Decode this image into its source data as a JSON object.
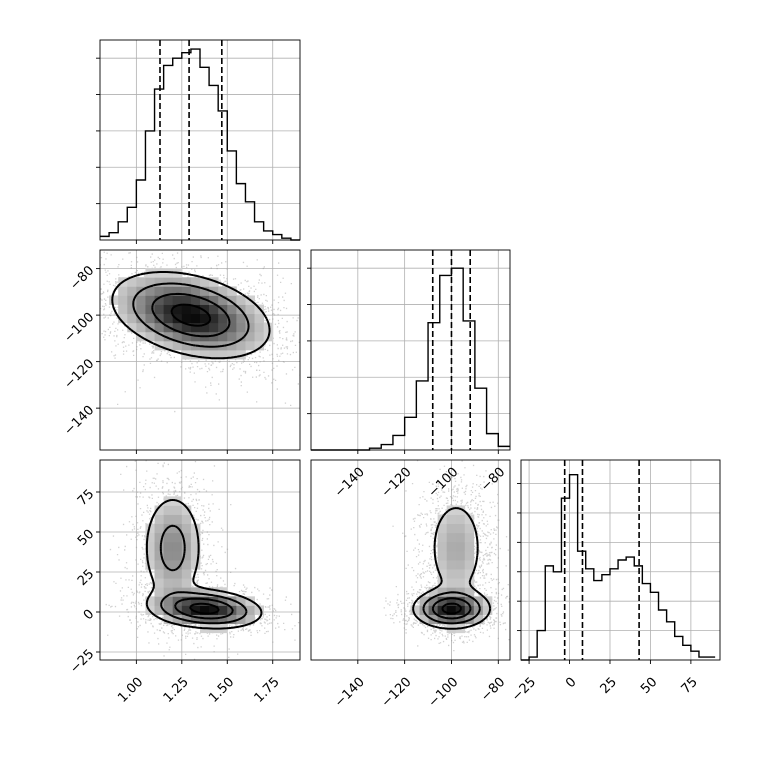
{
  "chart_data": [
    {
      "type": "histogram",
      "panel": "param-0-marginal",
      "bin_edges": [
        0.8,
        0.85,
        0.9,
        0.95,
        1.0,
        1.05,
        1.1,
        1.15,
        1.2,
        1.25,
        1.3,
        1.35,
        1.4,
        1.45,
        1.5,
        1.55,
        1.6,
        1.65,
        1.7,
        1.75,
        1.8,
        1.85,
        1.9
      ],
      "counts": [
        2,
        4,
        10,
        18,
        33,
        60,
        83,
        96,
        100,
        103,
        105,
        95,
        85,
        71,
        49,
        31,
        21,
        10,
        5,
        3,
        1,
        0
      ],
      "quantiles": [
        1.13,
        1.29,
        1.47
      ],
      "xlim": [
        0.8,
        1.9
      ],
      "ylim": [
        0,
        110
      ],
      "x_ticks": [
        1.0,
        1.25,
        1.5,
        1.75
      ]
    },
    {
      "type": "histogram",
      "panel": "param-1-marginal",
      "bin_edges": [
        -160,
        -155,
        -150,
        -145,
        -140,
        -135,
        -130,
        -125,
        -120,
        -115,
        -110,
        -105,
        -100,
        -95,
        -90,
        -85,
        -80,
        -75
      ],
      "counts": [
        0,
        0,
        0,
        0,
        0,
        1,
        3,
        8,
        18,
        38,
        70,
        96,
        100,
        71,
        34,
        9,
        2
      ],
      "quantiles": [
        -108,
        -100,
        -92
      ],
      "xlim": [
        -160,
        -75
      ],
      "ylim": [
        0,
        110
      ],
      "x_ticks": [
        -140,
        -120,
        -100,
        -80
      ],
      "x_tick_labels": [
        "−140",
        "−120",
        "−100",
        "−80"
      ]
    },
    {
      "type": "histogram",
      "panel": "param-2-marginal",
      "bin_edges": [
        -30,
        -25,
        -20,
        -15,
        -10,
        -5,
        0,
        5,
        10,
        15,
        20,
        25,
        30,
        35,
        40,
        45,
        50,
        55,
        60,
        65,
        70,
        75,
        80,
        85,
        90
      ],
      "counts": [
        0,
        1,
        10,
        32,
        30,
        55,
        63,
        37,
        31,
        27,
        29,
        31,
        34,
        35,
        32,
        26,
        23,
        17,
        13,
        8,
        5,
        3,
        1,
        1
      ],
      "quantiles": [
        -3,
        8,
        43
      ],
      "xlim": [
        -30,
        93
      ],
      "ylim": [
        0,
        68
      ],
      "x_ticks": [
        -25,
        0,
        25,
        50,
        75
      ],
      "x_tick_labels": [
        "−25",
        "0",
        "25",
        "50",
        "75"
      ]
    },
    {
      "type": "scatter",
      "panel": "param-1-vs-param-0",
      "xlim": [
        0.8,
        1.9
      ],
      "ylim": [
        -158,
        -72
      ],
      "x_ticks": [
        1.0,
        1.25,
        1.5,
        1.75
      ],
      "y_ticks": [
        -80,
        -100,
        -120,
        -140
      ],
      "y_tick_labels": [
        "−80",
        "−100",
        "−120",
        "−140"
      ],
      "density_modes": [
        {
          "x": 1.3,
          "y": -100,
          "sx": 0.21,
          "sy": 9,
          "rho": -0.35,
          "weight": 1.0
        }
      ]
    },
    {
      "type": "scatter",
      "panel": "param-2-vs-param-0",
      "xlim": [
        0.8,
        1.9
      ],
      "ylim": [
        -30,
        95
      ],
      "x_ticks": [
        1.0,
        1.25,
        1.5,
        1.75
      ],
      "x_tick_labels": [
        "1.00",
        "1.25",
        "1.50",
        "1.75"
      ],
      "y_ticks": [
        75,
        50,
        25,
        0,
        -25
      ],
      "y_tick_labels": [
        "75",
        "50",
        "25",
        "0",
        "−25"
      ],
      "density_modes": [
        {
          "x": 1.38,
          "y": 2,
          "sx": 0.15,
          "sy": 6,
          "rho": -0.2,
          "weight": 0.55
        },
        {
          "x": 1.2,
          "y": 40,
          "sx": 0.09,
          "sy": 19,
          "rho": 0.0,
          "weight": 0.45
        }
      ]
    },
    {
      "type": "scatter",
      "panel": "param-2-vs-param-1",
      "xlim": [
        -160,
        -75
      ],
      "ylim": [
        -30,
        95
      ],
      "x_ticks": [
        -140,
        -120,
        -100,
        -80
      ],
      "x_tick_labels": [
        "−140",
        "−120",
        "−100",
        "−80"
      ],
      "density_modes": [
        {
          "x": -100,
          "y": 2,
          "sx": 8,
          "sy": 6,
          "rho": 0.0,
          "weight": 0.55
        },
        {
          "x": -98,
          "y": 40,
          "sx": 7,
          "sy": 19,
          "rho": 0.0,
          "weight": 0.45
        }
      ]
    }
  ]
}
